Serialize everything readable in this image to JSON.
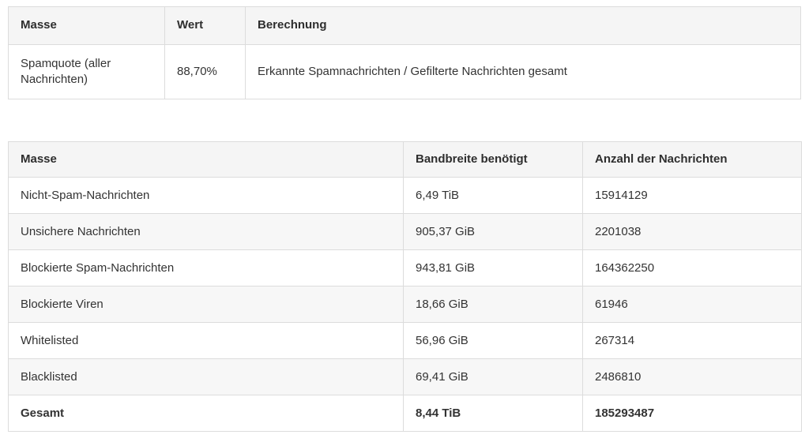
{
  "colors": {
    "header_bg": "#f5f5f5",
    "row_alt_bg": "#f7f7f7",
    "border": "#dcdcdc",
    "text": "#333333"
  },
  "summary_table": {
    "columns": [
      "Masse",
      "Wert",
      "Berechnung"
    ],
    "rows": [
      {
        "masse": "Spamquote (aller Nachrichten)",
        "wert": "88,70%",
        "berechnung": "Erkannte Spamnachrichten / Gefilterte Nachrichten gesamt"
      }
    ]
  },
  "stats_table": {
    "columns": [
      "Masse",
      "Bandbreite benötigt",
      "Anzahl der Nachrichten"
    ],
    "rows": [
      {
        "masse": "Nicht-Spam-Nachrichten",
        "bandbreite": "6,49 TiB",
        "anzahl": "15914129"
      },
      {
        "masse": "Unsichere Nachrichten",
        "bandbreite": "905,37 GiB",
        "anzahl": "2201038"
      },
      {
        "masse": "Blockierte Spam-Nachrichten",
        "bandbreite": "943,81 GiB",
        "anzahl": "164362250"
      },
      {
        "masse": "Blockierte Viren",
        "bandbreite": "18,66 GiB",
        "anzahl": "61946"
      },
      {
        "masse": "Whitelisted",
        "bandbreite": "56,96 GiB",
        "anzahl": "267314"
      },
      {
        "masse": "Blacklisted",
        "bandbreite": "69,41 GiB",
        "anzahl": "2486810"
      },
      {
        "masse": "Gesamt",
        "bandbreite": "8,44 TiB",
        "anzahl": "185293487"
      }
    ]
  }
}
